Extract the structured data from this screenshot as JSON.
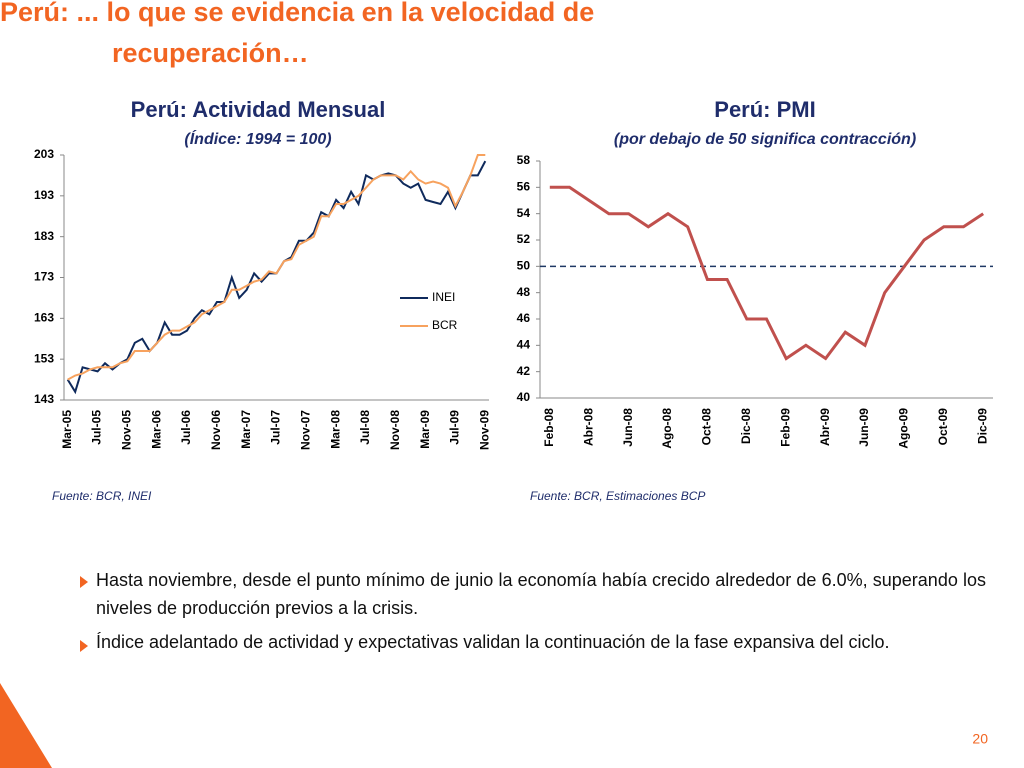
{
  "title": [
    "Perú: ... lo que se evidencia en la velocidad de",
    "recuperación…"
  ],
  "chart_data": [
    {
      "type": "line",
      "title": "Perú: Actividad Mensual",
      "subtitle": "(Índice: 1994 = 100)",
      "categories": [
        "Mar-05",
        null,
        null,
        null,
        "Jul-05",
        null,
        null,
        null,
        "Nov-05",
        null,
        null,
        null,
        "Mar-06",
        null,
        null,
        null,
        "Jul-06",
        null,
        null,
        null,
        "Nov-06",
        null,
        null,
        null,
        "Mar-07",
        null,
        null,
        null,
        "Jul-07",
        null,
        null,
        null,
        "Nov-07",
        null,
        null,
        null,
        "Mar-08",
        null,
        null,
        null,
        "Jul-08",
        null,
        null,
        null,
        "Nov-08",
        null,
        null,
        null,
        "Mar-09",
        null,
        null,
        null,
        "Jul-09",
        null,
        null,
        null,
        "Nov-09"
      ],
      "series": [
        {
          "name": "INEI",
          "color": "#0f2a5c",
          "values": [
            148,
            145,
            151,
            150.5,
            150,
            152,
            150.5,
            152,
            153,
            157,
            158,
            155,
            157,
            162,
            159,
            159,
            160,
            163,
            165,
            164,
            167,
            167,
            173,
            168,
            170,
            174,
            172,
            174,
            174,
            177,
            178,
            182,
            182,
            184,
            189,
            188,
            192,
            190,
            194,
            191,
            198,
            197,
            198,
            198.5,
            198,
            196,
            195,
            196,
            192,
            191.5,
            191,
            194,
            190,
            194,
            198,
            198,
            201.5
          ]
        },
        {
          "name": "BCR",
          "color": "#f7a25e",
          "values": [
            148,
            149,
            149.5,
            150.5,
            151,
            151,
            151,
            152,
            152.5,
            155,
            155,
            155,
            157,
            159,
            160,
            160,
            161,
            162,
            164,
            165,
            166,
            167,
            170,
            170,
            171,
            172,
            172.5,
            174.5,
            174,
            177,
            177.5,
            181,
            182,
            183,
            188,
            188,
            191,
            191,
            192,
            193,
            195,
            197,
            198,
            198,
            198,
            197,
            199,
            197,
            196,
            196.5,
            196,
            195,
            190.5,
            194,
            198,
            203,
            203
          ]
        }
      ],
      "ylim": [
        143,
        203
      ],
      "yticks": [
        143,
        153,
        163,
        173,
        183,
        193,
        203
      ],
      "legend": "right",
      "source": "Fuente: BCR, INEI"
    },
    {
      "type": "line",
      "title": "Perú: PMI",
      "subtitle": "(por debajo de 50 significa contracción)",
      "categories": [
        "Feb-08",
        null,
        "Abr-08",
        null,
        "Jun-08",
        null,
        "Ago-08",
        null,
        "Oct-08",
        null,
        "Dic-08",
        null,
        "Feb-09",
        null,
        "Abr-09",
        null,
        "Jun-09",
        null,
        "Ago-09",
        null,
        "Oct-09",
        null,
        "Dic-09"
      ],
      "series": [
        {
          "name": "PMI",
          "color": "#c0504d",
          "values": [
            56,
            56,
            55,
            54,
            54,
            53,
            54,
            53,
            49,
            49,
            46,
            46,
            43,
            44,
            43,
            45,
            44,
            48,
            50,
            52,
            53,
            53,
            54
          ]
        }
      ],
      "reference_line": 50,
      "ylim": [
        40,
        58
      ],
      "yticks": [
        40,
        42,
        44,
        46,
        48,
        50,
        52,
        54,
        56,
        58
      ],
      "source": "Fuente: BCR, Estimaciones BCP"
    }
  ],
  "bullets": [
    "Hasta noviembre, desde el punto mínimo de junio la economía había crecido alrededor de 6.0%, superando los niveles de producción previos a la crisis.",
    "Índice adelantado de actividad y expectativas validan la continuación de la fase expansiva del ciclo."
  ],
  "page_number": "20"
}
